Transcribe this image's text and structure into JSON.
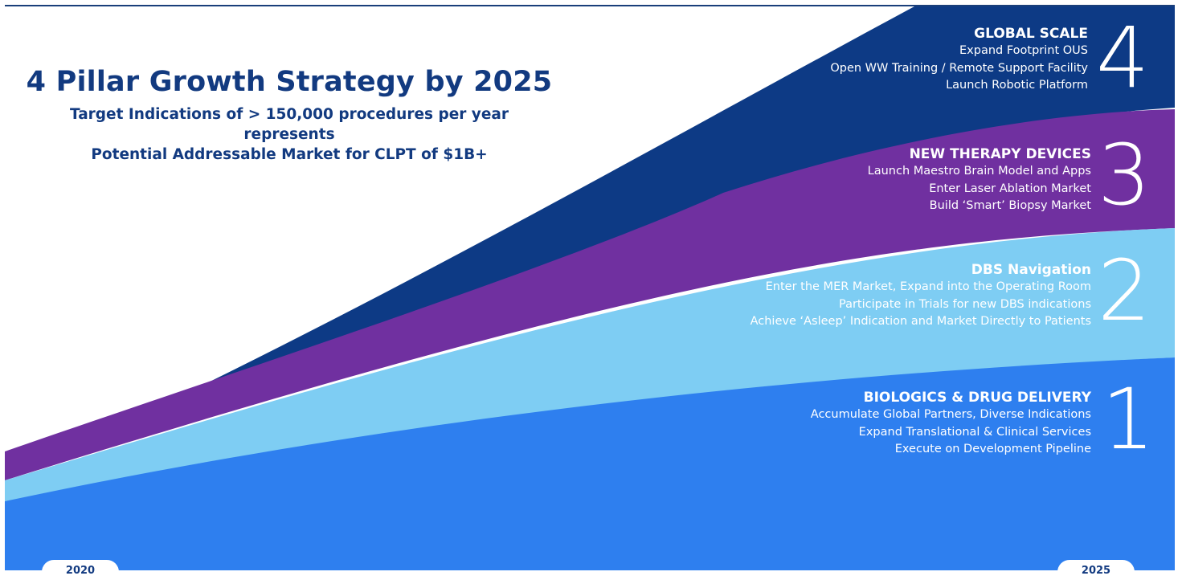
{
  "title": "4 Pillar Growth Strategy by 2025",
  "subtitle_lines": [
    "Target Indications of > 150,000 procedures per year represents",
    "Potential Addressable Market for CLPT of $1B+"
  ],
  "colors": {
    "global_scale": "#0d3a85",
    "new_therapy": "#7030a0",
    "dbs_navigation": "#7ecdf3",
    "biologics": "#2e7fef",
    "title_text": "#123a80"
  },
  "pillars": [
    {
      "number": "4",
      "heading": "GLOBAL SCALE",
      "lines": [
        "Expand Footprint OUS",
        "Open WW Training / Remote Support Facility",
        "Launch Robotic Platform"
      ]
    },
    {
      "number": "3",
      "heading": "NEW THERAPY DEVICES",
      "lines": [
        "Launch Maestro Brain Model and Apps",
        "Enter Laser Ablation Market",
        "Build ‘Smart’ Biopsy Market"
      ]
    },
    {
      "number": "2",
      "heading": "DBS Navigation",
      "lines": [
        "Enter the MER Market, Expand into the Operating Room",
        "Participate in Trials for new DBS indications",
        "Achieve ‘Asleep’ Indication and Market Directly to Patients"
      ]
    },
    {
      "number": "1",
      "heading": "BIOLOGICS & DRUG DELIVERY",
      "lines": [
        "Accumulate Global Partners, Diverse Indications",
        "Expand Translational & Clinical Services",
        "Execute on Development Pipeline"
      ]
    }
  ],
  "timeline": {
    "start": "2020",
    "end": "2025"
  }
}
